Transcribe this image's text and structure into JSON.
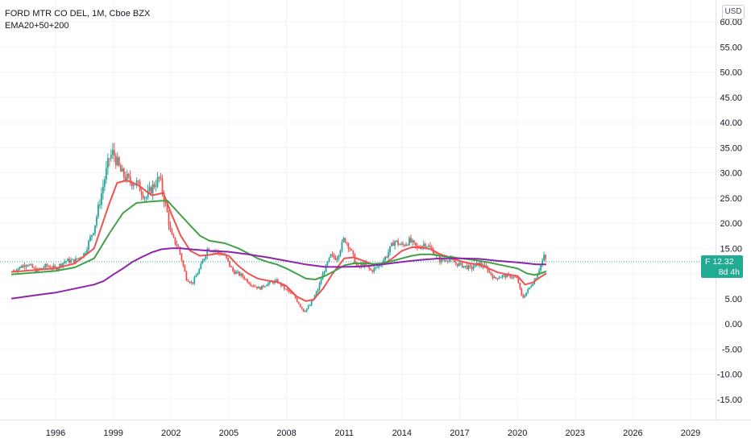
{
  "legend": {
    "title": "FORD MTR CO DEL, 1M, Cboe BZX",
    "indicator": "EMA20+50+200"
  },
  "currency": "USD",
  "last_price": {
    "label": "F  12.32",
    "countdown": "8d 4h",
    "value": 12.32,
    "color": "#22ab94"
  },
  "chart_data": {
    "type": "line",
    "title": "FORD MTR CO DEL, 1M, Cboe BZX",
    "xlabel": "",
    "ylabel": "",
    "x_range": [
      1993.7,
      2030.0
    ],
    "ylim": [
      -20,
      62.5
    ],
    "y_ticks": [
      -15,
      -10,
      -5,
      0,
      5,
      10,
      15,
      20,
      25,
      30,
      35,
      40,
      45,
      50,
      55,
      60
    ],
    "y_tick_labels": [
      "-15.00",
      "-10.00",
      "-5.00",
      "0.00",
      "5.00",
      "10.00",
      "15.00",
      "20.00",
      "25.00",
      "30.00",
      "35.00",
      "40.00",
      "45.00",
      "50.00",
      "55.00",
      "60.00"
    ],
    "x_ticks": [
      1996,
      1999,
      2002,
      2005,
      2008,
      2011,
      2014,
      2017,
      2020,
      2023,
      2026,
      2029
    ],
    "x_tick_labels": [
      "1996",
      "1999",
      "2002",
      "2005",
      "2008",
      "2011",
      "2014",
      "2017",
      "2020",
      "2023",
      "2026",
      "2029"
    ],
    "grid": true,
    "price_line": 12.32,
    "candles": {
      "up_color": "#26a69a",
      "down_color": "#ef5350",
      "points": [
        [
          1993.8,
          10.5
        ],
        [
          1994.5,
          12.0
        ],
        [
          1995.0,
          10.5
        ],
        [
          1995.5,
          11.5
        ],
        [
          1996.0,
          11.0
        ],
        [
          1996.5,
          12.5
        ],
        [
          1997.0,
          12.5
        ],
        [
          1997.5,
          14.0
        ],
        [
          1998.0,
          19.0
        ],
        [
          1998.5,
          28.0
        ],
        [
          1998.8,
          33.0
        ],
        [
          1999.0,
          34.0
        ],
        [
          1999.4,
          30.0
        ],
        [
          1999.8,
          28.5
        ],
        [
          2000.2,
          28.0
        ],
        [
          2000.7,
          25.0
        ],
        [
          2001.0,
          27.0
        ],
        [
          2001.4,
          29.0
        ],
        [
          2001.8,
          22.0
        ],
        [
          2002.0,
          17.5
        ],
        [
          2002.4,
          15.0
        ],
        [
          2002.8,
          9.0
        ],
        [
          2003.1,
          8.0
        ],
        [
          2003.5,
          11.0
        ],
        [
          2003.9,
          15.0
        ],
        [
          2004.3,
          14.5
        ],
        [
          2004.8,
          13.5
        ],
        [
          2005.2,
          10.5
        ],
        [
          2005.7,
          9.5
        ],
        [
          2006.1,
          8.0
        ],
        [
          2006.6,
          7.0
        ],
        [
          2007.0,
          8.0
        ],
        [
          2007.5,
          8.5
        ],
        [
          2007.9,
          7.0
        ],
        [
          2008.4,
          5.5
        ],
        [
          2008.9,
          2.5
        ],
        [
          2009.2,
          3.5
        ],
        [
          2009.6,
          6.5
        ],
        [
          2009.9,
          10.0
        ],
        [
          2010.3,
          13.5
        ],
        [
          2010.6,
          13.0
        ],
        [
          2011.0,
          17.0
        ],
        [
          2011.3,
          15.0
        ],
        [
          2011.7,
          11.0
        ],
        [
          2012.0,
          12.0
        ],
        [
          2012.4,
          10.5
        ],
        [
          2012.8,
          11.5
        ],
        [
          2013.2,
          13.5
        ],
        [
          2013.6,
          16.5
        ],
        [
          2014.0,
          15.5
        ],
        [
          2014.4,
          16.5
        ],
        [
          2014.8,
          15.0
        ],
        [
          2015.2,
          16.0
        ],
        [
          2015.6,
          14.5
        ],
        [
          2016.0,
          12.5
        ],
        [
          2016.4,
          13.0
        ],
        [
          2016.8,
          12.0
        ],
        [
          2017.2,
          11.5
        ],
        [
          2017.6,
          11.0
        ],
        [
          2018.0,
          12.0
        ],
        [
          2018.4,
          11.0
        ],
        [
          2018.8,
          9.0
        ],
        [
          2019.2,
          9.5
        ],
        [
          2019.6,
          9.5
        ],
        [
          2020.0,
          9.0
        ],
        [
          2020.25,
          5.0
        ],
        [
          2020.6,
          7.0
        ],
        [
          2020.9,
          8.8
        ],
        [
          2021.2,
          11.5
        ],
        [
          2021.4,
          13.5
        ],
        [
          2021.5,
          12.32
        ]
      ]
    },
    "series": [
      {
        "name": "EMA20",
        "color": "#ef5350",
        "values": [
          [
            1993.7,
            10.3
          ],
          [
            1995.0,
            10.7
          ],
          [
            1996.0,
            11.0
          ],
          [
            1997.0,
            12.0
          ],
          [
            1998.0,
            15.0
          ],
          [
            1998.8,
            24.0
          ],
          [
            1999.2,
            28.0
          ],
          [
            1999.7,
            28.5
          ],
          [
            2000.3,
            27.5
          ],
          [
            2001.0,
            25.5
          ],
          [
            2001.6,
            26.0
          ],
          [
            2002.0,
            22.0
          ],
          [
            2002.5,
            17.5
          ],
          [
            2003.0,
            14.5
          ],
          [
            2003.5,
            13.5
          ],
          [
            2004.0,
            13.7
          ],
          [
            2004.5,
            14.0
          ],
          [
            2005.0,
            13.5
          ],
          [
            2005.5,
            11.5
          ],
          [
            2006.0,
            10.0
          ],
          [
            2006.5,
            9.0
          ],
          [
            2007.0,
            8.6
          ],
          [
            2007.5,
            8.3
          ],
          [
            2008.0,
            7.5
          ],
          [
            2008.5,
            5.5
          ],
          [
            2009.0,
            4.5
          ],
          [
            2009.4,
            4.8
          ],
          [
            2009.9,
            7.0
          ],
          [
            2010.4,
            10.0
          ],
          [
            2011.0,
            13.0
          ],
          [
            2011.5,
            13.2
          ],
          [
            2012.0,
            12.5
          ],
          [
            2012.5,
            11.8
          ],
          [
            2013.0,
            11.8
          ],
          [
            2013.5,
            13.0
          ],
          [
            2014.0,
            14.5
          ],
          [
            2014.5,
            15.2
          ],
          [
            2015.0,
            15.2
          ],
          [
            2015.5,
            14.8
          ],
          [
            2016.0,
            13.8
          ],
          [
            2016.5,
            13.2
          ],
          [
            2017.0,
            12.5
          ],
          [
            2017.5,
            12.0
          ],
          [
            2018.0,
            11.8
          ],
          [
            2018.5,
            11.0
          ],
          [
            2019.0,
            10.2
          ],
          [
            2019.5,
            9.8
          ],
          [
            2020.0,
            9.5
          ],
          [
            2020.4,
            7.8
          ],
          [
            2020.8,
            8.2
          ],
          [
            2021.2,
            9.3
          ],
          [
            2021.5,
            10.0
          ]
        ]
      },
      {
        "name": "EMA50",
        "color": "#43a047",
        "values": [
          [
            1993.7,
            9.8
          ],
          [
            1995.0,
            10.2
          ],
          [
            1996.0,
            10.5
          ],
          [
            1997.0,
            11.2
          ],
          [
            1998.0,
            13.0
          ],
          [
            1998.8,
            18.0
          ],
          [
            1999.5,
            22.0
          ],
          [
            2000.2,
            24.0
          ],
          [
            2001.0,
            24.3
          ],
          [
            2001.8,
            24.5
          ],
          [
            2002.4,
            22.0
          ],
          [
            2003.0,
            19.5
          ],
          [
            2003.5,
            17.5
          ],
          [
            2004.0,
            16.5
          ],
          [
            2004.8,
            16.0
          ],
          [
            2005.5,
            15.0
          ],
          [
            2006.0,
            14.0
          ],
          [
            2006.5,
            13.0
          ],
          [
            2007.0,
            12.3
          ],
          [
            2007.5,
            11.8
          ],
          [
            2008.0,
            11.0
          ],
          [
            2008.5,
            10.0
          ],
          [
            2009.0,
            9.0
          ],
          [
            2009.5,
            8.8
          ],
          [
            2010.0,
            9.5
          ],
          [
            2010.5,
            10.5
          ],
          [
            2011.0,
            11.6
          ],
          [
            2011.5,
            12.0
          ],
          [
            2012.0,
            12.0
          ],
          [
            2012.5,
            11.9
          ],
          [
            2013.0,
            12.0
          ],
          [
            2013.5,
            12.5
          ],
          [
            2014.0,
            13.0
          ],
          [
            2014.5,
            13.5
          ],
          [
            2015.0,
            13.8
          ],
          [
            2015.5,
            13.8
          ],
          [
            2016.0,
            13.5
          ],
          [
            2016.5,
            13.3
          ],
          [
            2017.0,
            13.0
          ],
          [
            2017.5,
            12.8
          ],
          [
            2018.0,
            12.5
          ],
          [
            2018.5,
            12.2
          ],
          [
            2019.0,
            11.8
          ],
          [
            2019.5,
            11.4
          ],
          [
            2020.0,
            11.0
          ],
          [
            2020.5,
            10.0
          ],
          [
            2020.9,
            9.7
          ],
          [
            2021.2,
            10.0
          ],
          [
            2021.5,
            10.4
          ]
        ]
      },
      {
        "name": "EMA200",
        "color": "#8e24aa",
        "values": [
          [
            1993.7,
            5.0
          ],
          [
            1995.0,
            5.7
          ],
          [
            1996.0,
            6.2
          ],
          [
            1997.0,
            7.0
          ],
          [
            1998.0,
            7.8
          ],
          [
            1998.5,
            8.5
          ],
          [
            1999.0,
            9.8
          ],
          [
            1999.5,
            11.0
          ],
          [
            2000.0,
            12.3
          ],
          [
            2000.5,
            13.3
          ],
          [
            2001.0,
            14.2
          ],
          [
            2001.5,
            14.8
          ],
          [
            2002.0,
            15.0
          ],
          [
            2002.5,
            15.0
          ],
          [
            2003.0,
            14.8
          ],
          [
            2004.0,
            14.5
          ],
          [
            2005.0,
            14.3
          ],
          [
            2006.0,
            13.8
          ],
          [
            2007.0,
            13.2
          ],
          [
            2008.0,
            12.5
          ],
          [
            2009.0,
            11.8
          ],
          [
            2010.0,
            11.3
          ],
          [
            2011.0,
            11.3
          ],
          [
            2012.0,
            11.4
          ],
          [
            2013.0,
            11.8
          ],
          [
            2014.0,
            12.3
          ],
          [
            2015.0,
            12.7
          ],
          [
            2016.0,
            13.0
          ],
          [
            2017.0,
            13.0
          ],
          [
            2018.0,
            12.9
          ],
          [
            2019.0,
            12.5
          ],
          [
            2020.0,
            12.2
          ],
          [
            2021.0,
            11.8
          ],
          [
            2021.5,
            11.8
          ]
        ]
      }
    ]
  }
}
